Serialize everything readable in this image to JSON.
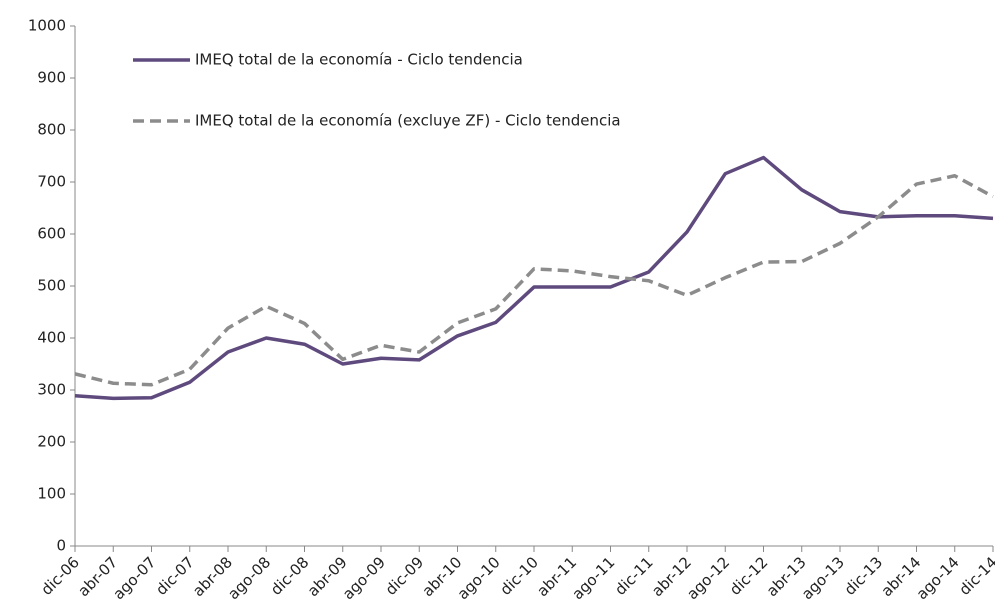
{
  "chart_data": {
    "type": "line",
    "categories": [
      "dic-06",
      "abr-07",
      "ago-07",
      "dic-07",
      "abr-08",
      "ago-08",
      "dic-08",
      "abr-09",
      "ago-09",
      "dic-09",
      "abr-10",
      "ago-10",
      "dic-10",
      "abr-11",
      "ago-11",
      "dic-11",
      "abr-12",
      "ago-12",
      "dic-12",
      "abr-13",
      "ago-13",
      "dic-13",
      "abr-14",
      "ago-14",
      "dic-14"
    ],
    "series": [
      {
        "name": "IMEQ total de la economía - Ciclo tendencia",
        "color": "#5f4a7e",
        "dash": false,
        "values": [
          289,
          284,
          285,
          315,
          373,
          400,
          388,
          350,
          361,
          358,
          404,
          430,
          498,
          498,
          498,
          527,
          604,
          716,
          747,
          685,
          643,
          633,
          635,
          635,
          630
        ]
      },
      {
        "name": "IMEQ total de la economía (excluye ZF) - Ciclo tendencia",
        "color": "#8c8c8c",
        "dash": true,
        "values": [
          331,
          313,
          310,
          340,
          419,
          461,
          428,
          359,
          386,
          373,
          429,
          456,
          533,
          529,
          518,
          510,
          482,
          516,
          546,
          547,
          582,
          633,
          696,
          712,
          672
        ]
      }
    ],
    "ylim": [
      0,
      1000
    ],
    "yticks": [
      0,
      100,
      200,
      300,
      400,
      500,
      600,
      700,
      800,
      900,
      1000
    ],
    "legend": "top-left"
  }
}
